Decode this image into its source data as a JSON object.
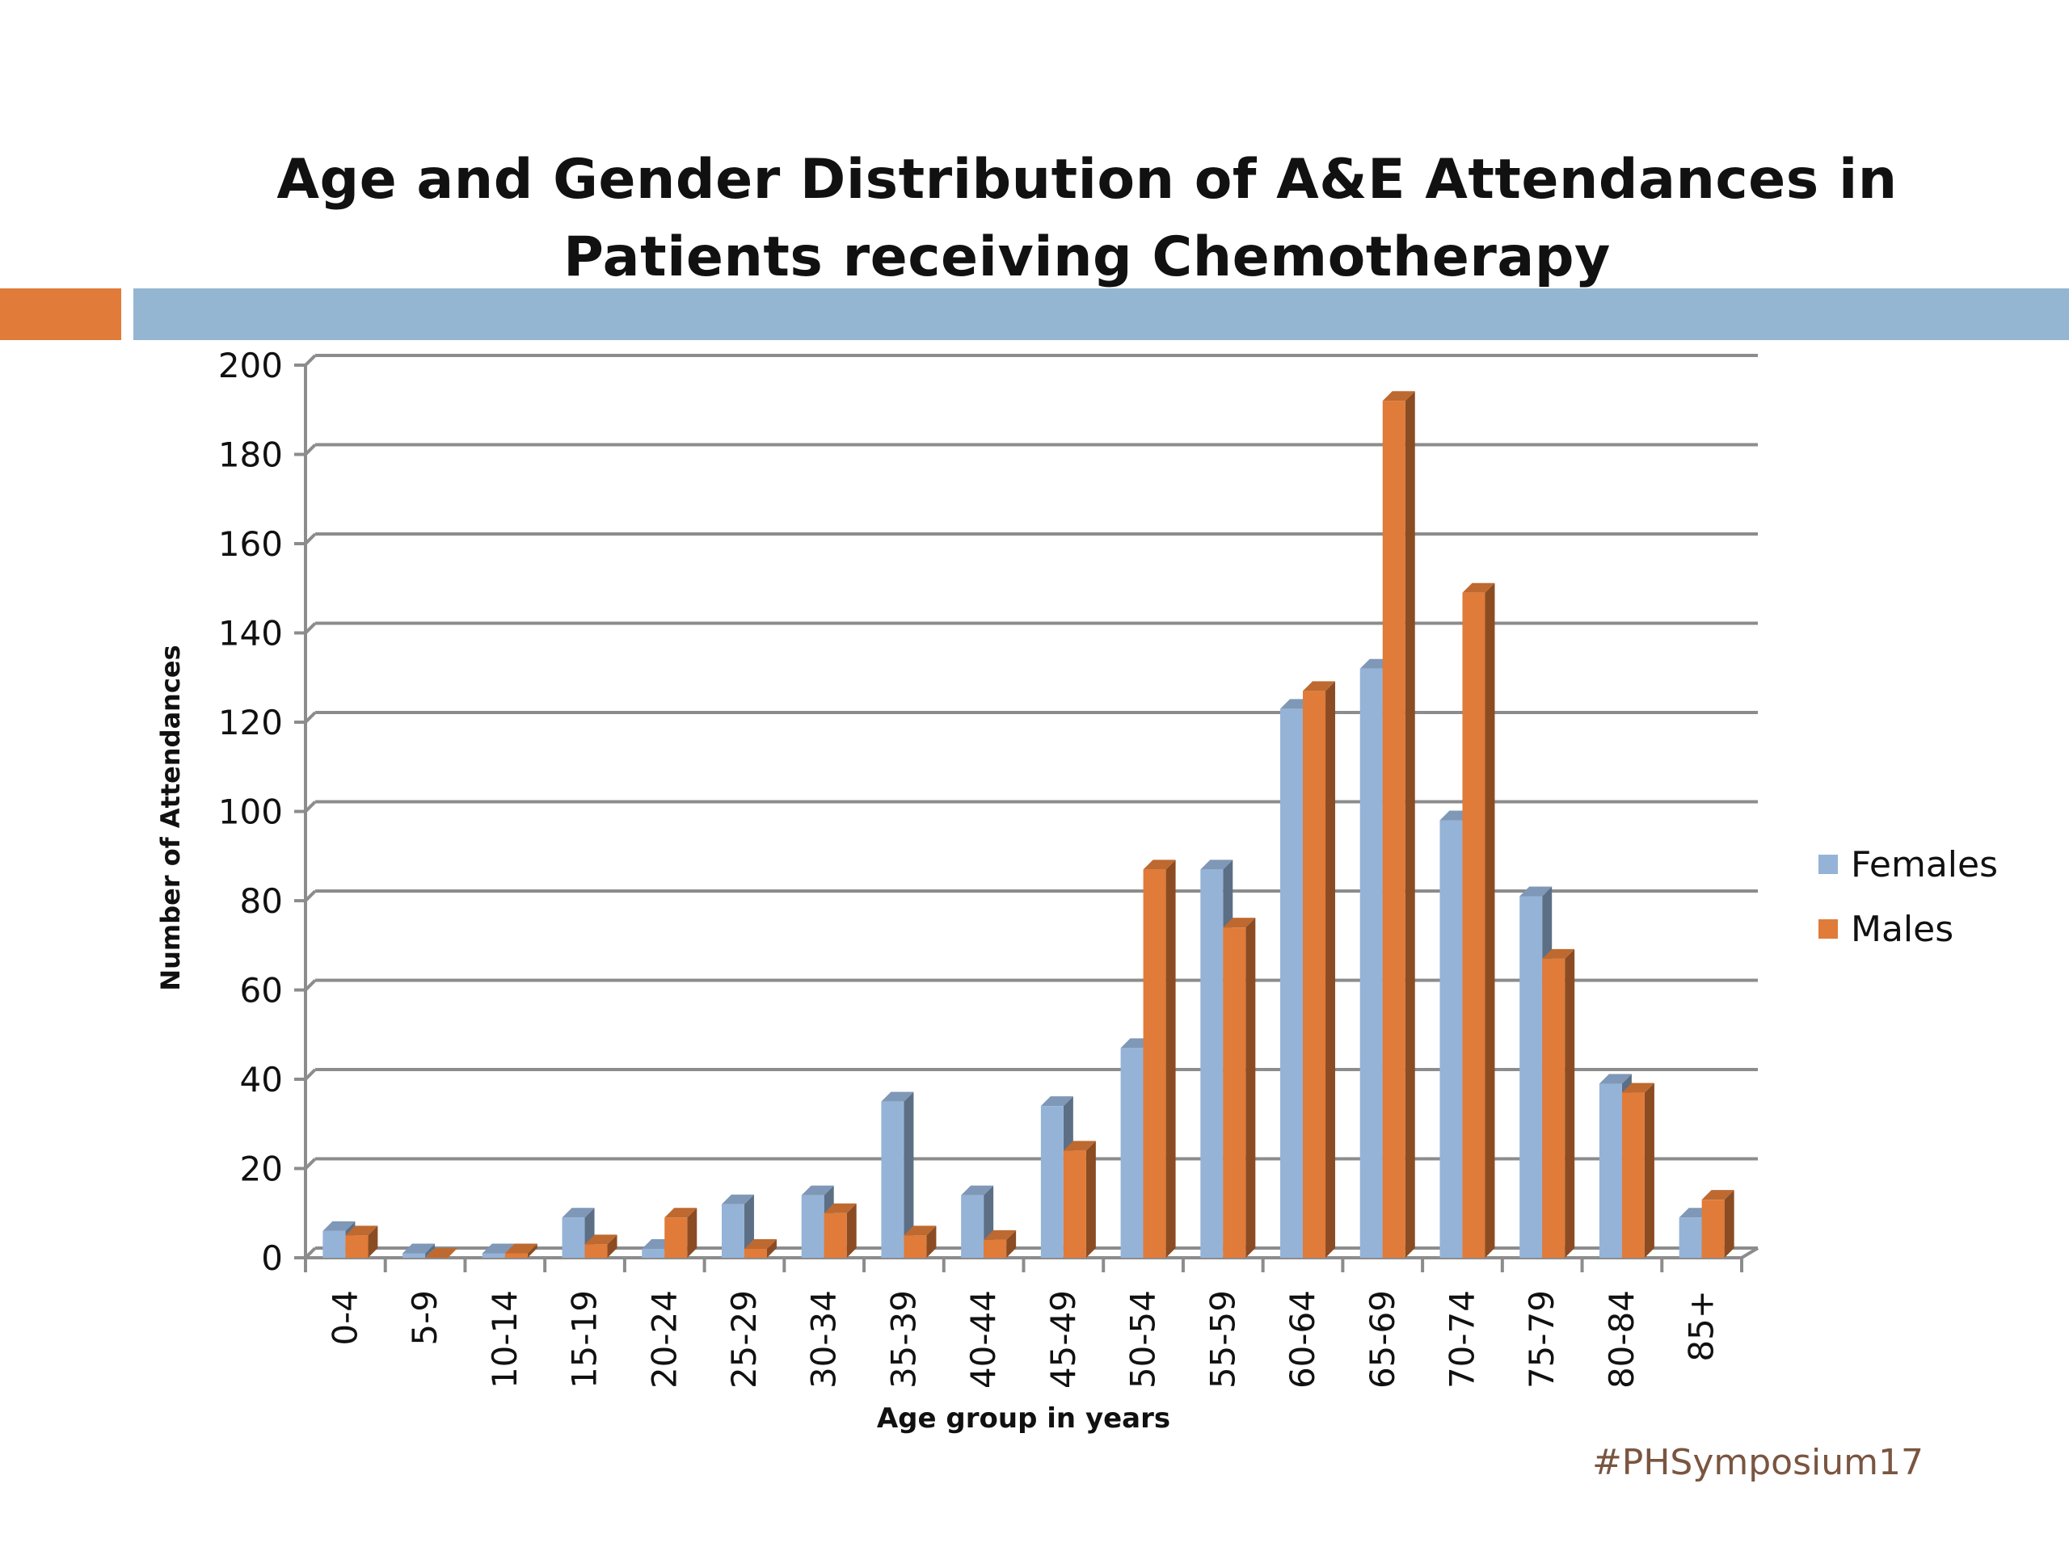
{
  "theme": {
    "accent_orange": "#e07b39",
    "accent_blue": "#94b6d3",
    "female_color": "#95b3d7",
    "male_color": "#e07b39",
    "hashtag_color": "#7a5540"
  },
  "title_lines": [
    "Age and Gender Distribution of  A&E Attendances in",
    "Patients receiving Chemotherapy"
  ],
  "hashtag": "#PHSymposium17",
  "chart_data": {
    "type": "bar",
    "title": "Age and Gender Distribution of  A&E Attendances in Patients receiving Chemotherapy",
    "xlabel": "Age group in years",
    "ylabel": "Number of Attendances",
    "ylim": [
      0,
      200
    ],
    "yticks": [
      0,
      20,
      40,
      60,
      80,
      100,
      120,
      140,
      160,
      180,
      200
    ],
    "grid": true,
    "legend_position": "right",
    "categories": [
      "0-4",
      "5-9",
      "10-14",
      "15-19",
      "20-24",
      "25-29",
      "30-34",
      "35-39",
      "40-44",
      "45-49",
      "50-54",
      "55-59",
      "60-64",
      "65-69",
      "70-74",
      "75-79",
      "80-84",
      "85+"
    ],
    "series": [
      {
        "name": "Females",
        "values": [
          6,
          1,
          1,
          9,
          2,
          12,
          14,
          35,
          14,
          34,
          47,
          87,
          123,
          132,
          98,
          81,
          39,
          9
        ]
      },
      {
        "name": "Males",
        "values": [
          5,
          0,
          1,
          3,
          9,
          2,
          10,
          5,
          4,
          24,
          87,
          74,
          127,
          192,
          149,
          67,
          37,
          13
        ]
      }
    ]
  }
}
